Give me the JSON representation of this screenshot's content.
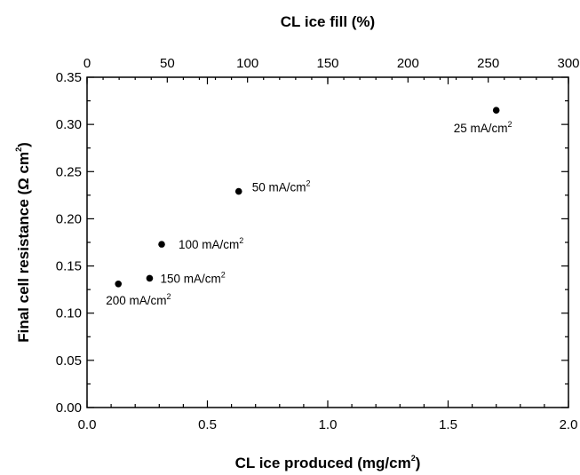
{
  "chart_data": {
    "type": "scatter",
    "title": "",
    "xlabel": "CL ice produced (mg/cm",
    "xlabel_sup": "2",
    "xlabel_tail": ")",
    "x2label": "CL ice fill (%)",
    "ylabel": "Final cell resistance (Ω cm",
    "ylabel_sup": "2",
    "ylabel_tail": ")",
    "xlim": [
      0,
      2.0
    ],
    "ylim": [
      0,
      0.35
    ],
    "x2lim": [
      0,
      300
    ],
    "x_ticks": [
      "0.0",
      "0.5",
      "1.0",
      "1.5",
      "2.0"
    ],
    "y_ticks": [
      "0.00",
      "0.05",
      "0.10",
      "0.15",
      "0.20",
      "0.25",
      "0.30",
      "0.35"
    ],
    "x2_ticks": [
      "0",
      "50",
      "100",
      "150",
      "200",
      "250",
      "300"
    ],
    "grid": false,
    "points": [
      {
        "x": 0.13,
        "y": 0.131,
        "label": "200 mA/cm",
        "sup": "2"
      },
      {
        "x": 0.26,
        "y": 0.137,
        "label": "150 mA/cm",
        "sup": "2"
      },
      {
        "x": 0.31,
        "y": 0.173,
        "label": "100 mA/cm",
        "sup": "2"
      },
      {
        "x": 0.63,
        "y": 0.229,
        "label": "50 mA/cm",
        "sup": "2"
      },
      {
        "x": 1.7,
        "y": 0.315,
        "label": "25 mA/cm",
        "sup": "2"
      }
    ],
    "marker_color": "#000000"
  }
}
